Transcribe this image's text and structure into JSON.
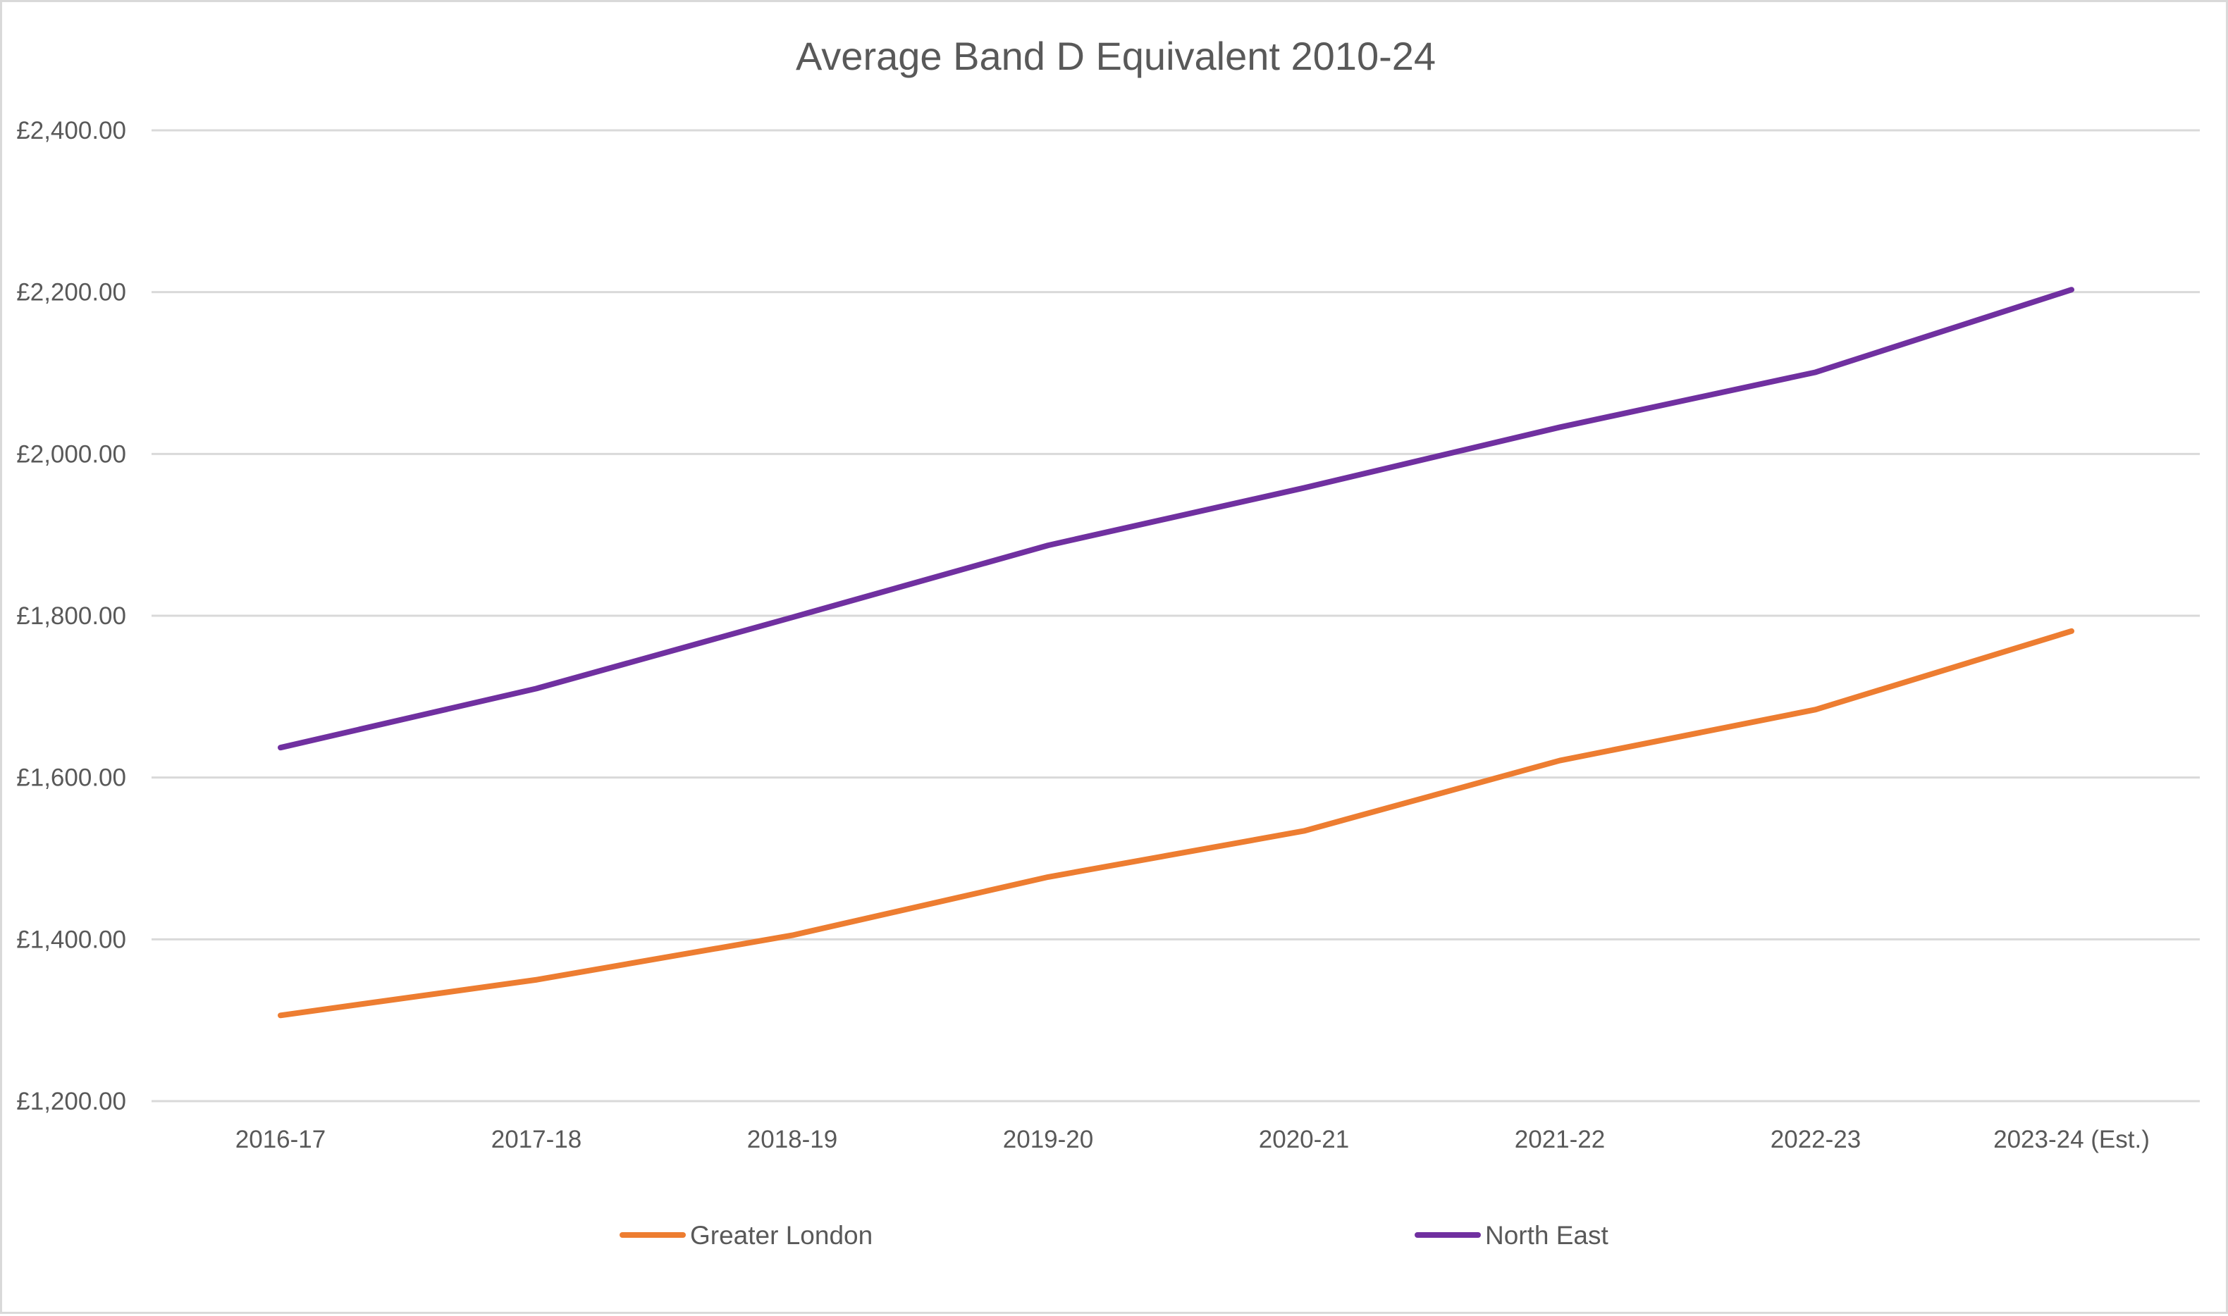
{
  "chart_data": {
    "type": "line",
    "title": "Average Band D Equivalent  2010-24",
    "xlabel": "",
    "ylabel": "",
    "categories": [
      "2016-17",
      "2017-18",
      "2018-19",
      "2019-20",
      "2020-21",
      "2021-22",
      "2022-23",
      "2023-24 (Est.)"
    ],
    "ylim": [
      1200,
      2400
    ],
    "yticks": [
      1200,
      1400,
      1600,
      1800,
      2000,
      2200,
      2400
    ],
    "ytick_labels": [
      "£1,200.00",
      "£1,400.00",
      "£1,600.00",
      "£1,800.00",
      "£2,000.00",
      "£2,200.00",
      "£2,400.00"
    ],
    "grid": true,
    "legend_position": "bottom",
    "series": [
      {
        "name": "Greater London",
        "color": "#ed7d31",
        "values": [
          1306,
          1350,
          1405,
          1477,
          1534,
          1621,
          1684,
          1781
        ]
      },
      {
        "name": "North East",
        "color": "#7030a0",
        "values": [
          1637,
          1710,
          1798,
          1887,
          1958,
          2033,
          2101,
          2203
        ]
      }
    ]
  }
}
